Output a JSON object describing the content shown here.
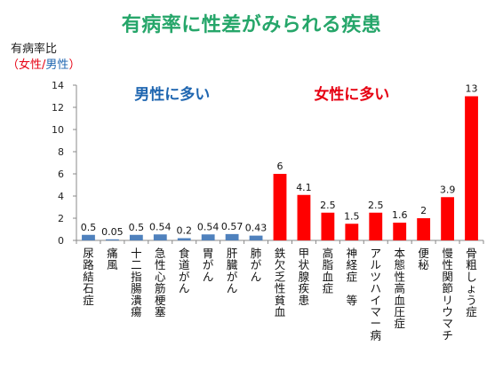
{
  "title": "有病率に性差がみられる疾患",
  "ylabel": {
    "line1": "有病率比",
    "open": "（",
    "female": "女性",
    "slash": "/",
    "male": "男性",
    "close": "）"
  },
  "annotations": {
    "male_more": "男性に多い",
    "female_more": "女性に多い"
  },
  "colors": {
    "male_bar": "#4f81bd",
    "female_bar": "#ff0000",
    "male_text": "#1f66b0",
    "female_text": "#e60012",
    "title": "#26a66a"
  },
  "chart_data": {
    "type": "bar",
    "title": "有病率に性差がみられる疾患",
    "ylabel": "有病率比（女性/男性）",
    "xlabel": "",
    "ylim": [
      0,
      14
    ],
    "yticks": [
      0,
      2,
      4,
      6,
      8,
      10,
      12,
      14
    ],
    "grid": false,
    "categories": [
      "尿路結石症",
      "痛風",
      "十二指腸潰瘍",
      "急性心筋梗塞",
      "食道がん",
      "胃がん",
      "肝臓がん",
      "肺がん",
      "鉄欠乏性貧血",
      "甲状腺疾患",
      "高脂血症",
      "神経症　等",
      "アルツハイマー病",
      "本態性高血圧症",
      "便秘",
      "慢性関節リウマチ",
      "骨粗しょう症"
    ],
    "values": [
      0.5,
      0.05,
      0.5,
      0.54,
      0.2,
      0.54,
      0.57,
      0.43,
      6,
      4.1,
      2.5,
      1.5,
      2.5,
      1.6,
      2,
      3.9,
      13
    ],
    "groups": [
      "male",
      "male",
      "male",
      "male",
      "male",
      "male",
      "male",
      "male",
      "female",
      "female",
      "female",
      "female",
      "female",
      "female",
      "female",
      "female",
      "female"
    ]
  }
}
